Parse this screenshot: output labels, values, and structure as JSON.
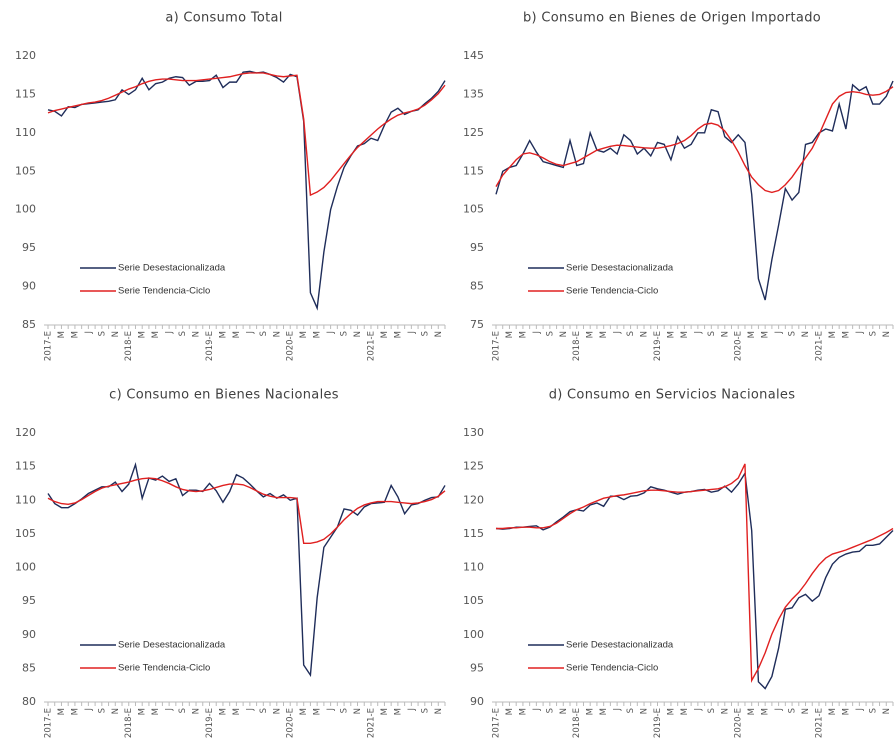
{
  "chart_data": [
    {
      "type": "line",
      "title": "a) Consumo Total",
      "categories": [
        "2017-E",
        null,
        "M",
        null,
        "M",
        null,
        "J",
        null,
        "S",
        null,
        "N",
        null,
        "2018-E",
        null,
        "M",
        null,
        "M",
        null,
        "J",
        null,
        "S",
        null,
        "N",
        null,
        "2019-E",
        null,
        "M",
        null,
        "M",
        null,
        "J",
        null,
        "S",
        null,
        "N",
        null,
        "2020-E",
        null,
        "M",
        null,
        "M",
        null,
        "J",
        null,
        "S",
        null,
        "N",
        null,
        "2021-E",
        null,
        "M",
        null,
        "M",
        null,
        "J",
        null,
        "S",
        null,
        "N",
        null
      ],
      "series": [
        {
          "name": "Serie Desestacionalizada",
          "color": "#1f2d5a",
          "values": [
            113,
            112.8,
            112.2,
            113.4,
            113.3,
            113.7,
            113.8,
            113.9,
            114,
            114.1,
            114.3,
            115.6,
            115,
            115.6,
            117.1,
            115.6,
            116.4,
            116.6,
            117.1,
            117.3,
            117.2,
            116.2,
            116.7,
            116.7,
            116.8,
            117.5,
            115.9,
            116.6,
            116.6,
            117.9,
            118,
            117.8,
            117.9,
            117.6,
            117.2,
            116.6,
            117.6,
            117.3,
            111.5,
            89.2,
            87.2,
            94.5,
            100,
            103,
            105.5,
            107,
            108.3,
            108.6,
            109.3,
            109,
            111,
            112.7,
            113.2,
            112.4,
            112.8,
            113,
            113.8,
            114.5,
            115.4,
            116.8
          ]
        },
        {
          "name": "Serie Tendencia-Ciclo",
          "color": "#e02020",
          "values": [
            112.6,
            112.9,
            113.1,
            113.3,
            113.5,
            113.7,
            113.9,
            114,
            114.2,
            114.5,
            114.9,
            115.3,
            115.7,
            116,
            116.4,
            116.7,
            116.9,
            117,
            117,
            116.9,
            116.8,
            116.8,
            116.8,
            116.9,
            117,
            117.1,
            117.2,
            117.3,
            117.5,
            117.7,
            117.8,
            117.8,
            117.8,
            117.6,
            117.4,
            117.3,
            117.4,
            117.5,
            111.8,
            101.9,
            102.3,
            102.9,
            103.8,
            104.9,
            106,
            107.1,
            108.1,
            108.9,
            109.7,
            110.5,
            111.2,
            111.8,
            112.3,
            112.6,
            112.8,
            113.1,
            113.6,
            114.3,
            115.1,
            116.2
          ]
        }
      ],
      "ylim": [
        85,
        120
      ],
      "yticks": [
        85,
        90,
        95,
        100,
        105,
        110,
        115,
        120
      ],
      "legend": "left"
    },
    {
      "type": "line",
      "title": "b) Consumo en Bienes de Origen Importado",
      "categories": [
        "2017-E",
        null,
        "M",
        null,
        "M",
        null,
        "J",
        null,
        "S",
        null,
        "N",
        null,
        "2018-E",
        null,
        "M",
        null,
        "M",
        null,
        "J",
        null,
        "S",
        null,
        "N",
        null,
        "2019-E",
        null,
        "M",
        null,
        "M",
        null,
        "J",
        null,
        "S",
        null,
        "N",
        null,
        "2020-E",
        null,
        "M",
        null,
        "M",
        null,
        "J",
        null,
        "S",
        null,
        "N",
        null,
        "2021-E",
        null,
        "M",
        null,
        "M",
        null,
        "J",
        null,
        "S",
        null,
        "N",
        null
      ],
      "series": [
        {
          "name": "Serie Desestacionalizada",
          "color": "#1f2d5a",
          "values": [
            109,
            115,
            116,
            116.5,
            119.5,
            123,
            120,
            117.5,
            117,
            116.5,
            116,
            123,
            116.5,
            117,
            125,
            120.5,
            120,
            121,
            119.5,
            124.5,
            123,
            119.5,
            121,
            119,
            122.5,
            122,
            118,
            124,
            121,
            122,
            125,
            125,
            131,
            130.5,
            124,
            122.5,
            124.5,
            122.5,
            109,
            87,
            81.5,
            92,
            101,
            110.5,
            107.5,
            109.5,
            122,
            122.5,
            125,
            126,
            125.5,
            132.5,
            126,
            137.5,
            136,
            137,
            132.5,
            132.5,
            134.5,
            138.5
          ]
        },
        {
          "name": "Serie Tendencia-Ciclo",
          "color": "#e02020",
          "values": [
            111,
            114,
            116,
            118,
            119.5,
            119.8,
            119.3,
            118.5,
            117.5,
            116.8,
            116.5,
            117,
            117.5,
            118.5,
            119.5,
            120.5,
            121,
            121.5,
            121.8,
            121.7,
            121.5,
            121.3,
            121.1,
            121,
            121,
            121.3,
            121.7,
            122.2,
            123,
            124.3,
            126,
            127.2,
            127.5,
            127,
            125.5,
            123,
            120,
            116.5,
            113.5,
            111.5,
            110,
            109.5,
            110,
            111.5,
            113.5,
            116,
            118.5,
            121,
            124.5,
            128.5,
            132.5,
            134.5,
            135.5,
            135.7,
            135.5,
            135,
            134.8,
            135,
            135.8,
            137
          ]
        }
      ],
      "ylim": [
        75,
        145
      ],
      "yticks": [
        75,
        85,
        95,
        105,
        115,
        125,
        135,
        145
      ],
      "legend": "left"
    },
    {
      "type": "line",
      "title": "c) Consumo en Bienes Nacionales",
      "categories": [
        "2017-E",
        null,
        "M",
        null,
        "M",
        null,
        "J",
        null,
        "S",
        null,
        "N",
        null,
        "2018-E",
        null,
        "M",
        null,
        "M",
        null,
        "J",
        null,
        "S",
        null,
        "N",
        null,
        "2019-E",
        null,
        "M",
        null,
        "M",
        null,
        "J",
        null,
        "S",
        null,
        "N",
        null,
        "2020-E",
        null,
        "M",
        null,
        "M",
        null,
        "J",
        null,
        "S",
        null,
        "N",
        null,
        "2021-E",
        null,
        "M",
        null,
        "M",
        null,
        "J",
        null,
        "S",
        null,
        "N",
        null
      ],
      "series": [
        {
          "name": "Serie Desestacionalizada",
          "color": "#1f2d5a",
          "values": [
            111,
            109.5,
            108.9,
            108.9,
            109.5,
            110.2,
            111,
            111.5,
            112,
            112,
            112.7,
            111.3,
            112.4,
            115.3,
            110.3,
            113.3,
            113,
            113.6,
            112.8,
            113.2,
            110.7,
            111.5,
            111.5,
            111.3,
            112.5,
            111.4,
            109.7,
            111.3,
            113.8,
            113.3,
            112.4,
            111.4,
            110.5,
            111,
            110.3,
            110.8,
            110,
            110.3,
            85.5,
            84,
            95.5,
            103,
            104.5,
            106,
            108.7,
            108.5,
            107.8,
            109,
            109.5,
            109.6,
            109.7,
            112.2,
            110.5,
            108,
            109.3,
            109.5,
            110,
            110.4,
            110.5,
            112.2
          ]
        },
        {
          "name": "Serie Tendencia-Ciclo",
          "color": "#e02020",
          "values": [
            110.3,
            109.8,
            109.5,
            109.4,
            109.6,
            110.1,
            110.7,
            111.3,
            111.8,
            112.1,
            112.3,
            112.5,
            112.7,
            113,
            113.2,
            113.3,
            113.2,
            112.9,
            112.5,
            112,
            111.6,
            111.4,
            111.3,
            111.4,
            111.6,
            111.9,
            112.2,
            112.4,
            112.4,
            112.3,
            111.9,
            111.4,
            110.9,
            110.6,
            110.4,
            110.4,
            110.4,
            110.3,
            103.6,
            103.6,
            103.8,
            104.2,
            105,
            106,
            107.1,
            108,
            108.8,
            109.3,
            109.6,
            109.8,
            109.8,
            109.8,
            109.7,
            109.6,
            109.5,
            109.6,
            109.8,
            110.1,
            110.6,
            111.4
          ]
        }
      ],
      "ylim": [
        80,
        120
      ],
      "yticks": [
        80,
        85,
        90,
        95,
        100,
        105,
        110,
        115,
        120
      ],
      "legend": "left"
    },
    {
      "type": "line",
      "title": "d) Consumo en Servicios Nacionales",
      "categories": [
        "2017-E",
        null,
        "M",
        null,
        "M",
        null,
        "J",
        null,
        "S",
        null,
        "N",
        null,
        "2018-E",
        null,
        "M",
        null,
        "M",
        null,
        "J",
        null,
        "S",
        null,
        "N",
        null,
        "2019-E",
        null,
        "M",
        null,
        "M",
        null,
        "J",
        null,
        "S",
        null,
        "N",
        null,
        "2020-E",
        null,
        "M",
        null,
        "M",
        null,
        "J",
        null,
        "S",
        null,
        "N",
        null,
        "2021-E",
        null,
        "M",
        null,
        "M",
        null,
        "J",
        null,
        "S",
        null,
        "N",
        null
      ],
      "series": [
        {
          "name": "Serie Desestacionalizada",
          "color": "#1f2d5a",
          "values": [
            115.8,
            115.7,
            115.8,
            116,
            116,
            116.1,
            116.2,
            115.6,
            116,
            116.8,
            117.5,
            118.3,
            118.6,
            118.4,
            119.3,
            119.6,
            119.1,
            120.6,
            120.6,
            120.1,
            120.6,
            120.7,
            121.1,
            122,
            121.7,
            121.5,
            121.2,
            120.9,
            121.2,
            121.3,
            121.5,
            121.6,
            121.2,
            121.4,
            122.1,
            121.2,
            122.4,
            124,
            115.5,
            93,
            92,
            93.8,
            98,
            103.8,
            104,
            105.5,
            106,
            105,
            105.8,
            108.5,
            110.5,
            111.5,
            112,
            112.3,
            112.4,
            113.3,
            113.3,
            113.5,
            114.5,
            115.5
          ]
        },
        {
          "name": "Serie Tendencia-Ciclo",
          "color": "#e02020",
          "values": [
            115.8,
            115.8,
            115.9,
            115.9,
            116,
            116,
            115.9,
            115.9,
            116.1,
            116.6,
            117.3,
            118,
            118.6,
            119,
            119.5,
            119.9,
            120.3,
            120.5,
            120.7,
            120.8,
            121,
            121.2,
            121.4,
            121.5,
            121.5,
            121.4,
            121.3,
            121.2,
            121.2,
            121.3,
            121.4,
            121.5,
            121.6,
            121.7,
            122,
            122.5,
            123.3,
            125.4,
            93.2,
            95,
            97.3,
            100.1,
            102.3,
            104.1,
            105.3,
            106.3,
            107.6,
            109.1,
            110.4,
            111.4,
            112,
            112.3,
            112.6,
            113,
            113.4,
            113.8,
            114.2,
            114.7,
            115.2,
            115.8
          ]
        }
      ],
      "ylim": [
        90,
        130
      ],
      "yticks": [
        90,
        95,
        100,
        105,
        110,
        115,
        120,
        125,
        130
      ],
      "legend": "left"
    }
  ]
}
